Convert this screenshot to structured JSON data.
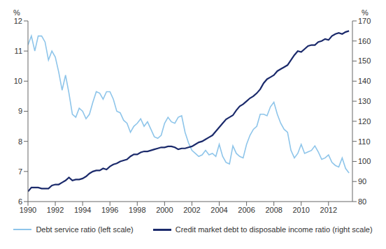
{
  "chart_data": {
    "type": "line",
    "ylabel": "%",
    "y2label": "%",
    "x": [
      1990,
      1990.25,
      1990.5,
      1990.75,
      1991,
      1991.25,
      1991.5,
      1991.75,
      1992,
      1992.25,
      1992.5,
      1992.75,
      1993,
      1993.25,
      1993.5,
      1993.75,
      1994,
      1994.25,
      1994.5,
      1994.75,
      1995,
      1995.25,
      1995.5,
      1995.75,
      1996,
      1996.25,
      1996.5,
      1996.75,
      1997,
      1997.25,
      1997.5,
      1997.75,
      1998,
      1998.25,
      1998.5,
      1998.75,
      1999,
      1999.25,
      1999.5,
      1999.75,
      2000,
      2000.25,
      2000.5,
      2000.75,
      2001,
      2001.25,
      2001.5,
      2001.75,
      2002,
      2002.25,
      2002.5,
      2002.75,
      2003,
      2003.25,
      2003.5,
      2003.75,
      2004,
      2004.25,
      2004.5,
      2004.75,
      2005,
      2005.25,
      2005.5,
      2005.75,
      2006,
      2006.25,
      2006.5,
      2006.75,
      2007,
      2007.25,
      2007.5,
      2007.75,
      2008,
      2008.25,
      2008.5,
      2008.75,
      2009,
      2009.25,
      2009.5,
      2009.75,
      2010,
      2010.25,
      2010.5,
      2010.75,
      2011,
      2011.25,
      2011.5,
      2011.75,
      2012,
      2012.25,
      2012.5,
      2012.75,
      2013,
      2013.25,
      2013.5
    ],
    "xlim": [
      1990,
      2013.75
    ],
    "xticks": [
      1990,
      1992,
      1994,
      1996,
      1998,
      2000,
      2002,
      2004,
      2006,
      2008,
      2010,
      2012
    ],
    "ylim": [
      6,
      12
    ],
    "yticks": [
      6,
      7,
      8,
      9,
      10,
      11,
      12
    ],
    "y2lim": [
      80,
      170
    ],
    "y2ticks": [
      80,
      90,
      100,
      110,
      120,
      130,
      140,
      150,
      160,
      170
    ],
    "series": [
      {
        "name": "Debt service ratio (left scale)",
        "color": "#8ec5ea",
        "axis": "y",
        "values": [
          11.2,
          11.5,
          11.0,
          11.5,
          11.5,
          11.3,
          10.7,
          11.0,
          10.8,
          10.3,
          9.7,
          10.2,
          9.6,
          8.9,
          8.8,
          9.1,
          9.0,
          8.75,
          8.9,
          9.3,
          9.65,
          9.6,
          9.4,
          9.65,
          9.65,
          9.4,
          9.0,
          8.95,
          8.7,
          8.6,
          8.3,
          8.5,
          8.6,
          8.75,
          8.5,
          8.65,
          8.4,
          8.15,
          8.1,
          8.2,
          8.6,
          8.8,
          8.65,
          8.6,
          8.8,
          8.85,
          8.3,
          7.95,
          7.7,
          7.6,
          7.5,
          7.55,
          7.7,
          7.55,
          7.6,
          7.5,
          7.9,
          7.5,
          7.3,
          7.25,
          7.85,
          7.6,
          7.5,
          7.45,
          7.9,
          8.2,
          8.4,
          8.5,
          8.9,
          8.9,
          8.85,
          9.15,
          9.3,
          8.9,
          8.6,
          8.4,
          8.3,
          7.7,
          7.45,
          7.6,
          7.9,
          7.6,
          7.65,
          7.7,
          7.85,
          7.65,
          7.4,
          7.45,
          7.55,
          7.3,
          7.2,
          7.15,
          7.45,
          7.1,
          6.95
        ]
      },
      {
        "name": "Credit market debt to disposable income ratio (right scale)",
        "color": "#1b2a6b",
        "axis": "y2",
        "values": [
          85,
          87,
          87,
          87,
          86.5,
          86.5,
          86.5,
          88,
          88.5,
          88.5,
          89.5,
          90.5,
          92,
          90.5,
          91,
          91,
          91.5,
          92.5,
          94,
          95,
          95.5,
          95.5,
          96.5,
          96,
          97.5,
          98.5,
          99,
          100,
          100.5,
          101,
          102.5,
          103.5,
          103.5,
          104.5,
          105,
          105,
          105.5,
          106,
          106.5,
          107,
          107,
          107.5,
          107.5,
          107,
          106,
          106.5,
          106.5,
          107,
          107.5,
          108.5,
          109.5,
          110,
          111,
          112,
          113,
          115,
          117,
          119,
          121,
          122,
          123,
          125.5,
          127.5,
          128.5,
          130,
          131.5,
          132.5,
          134,
          136,
          139,
          141,
          142,
          143,
          145,
          146,
          147,
          148,
          150.5,
          153,
          155,
          154.5,
          156,
          157.5,
          158,
          158,
          159.5,
          160,
          161,
          160.5,
          162.5,
          163.5,
          164,
          163.5,
          164.5,
          165
        ]
      }
    ]
  }
}
